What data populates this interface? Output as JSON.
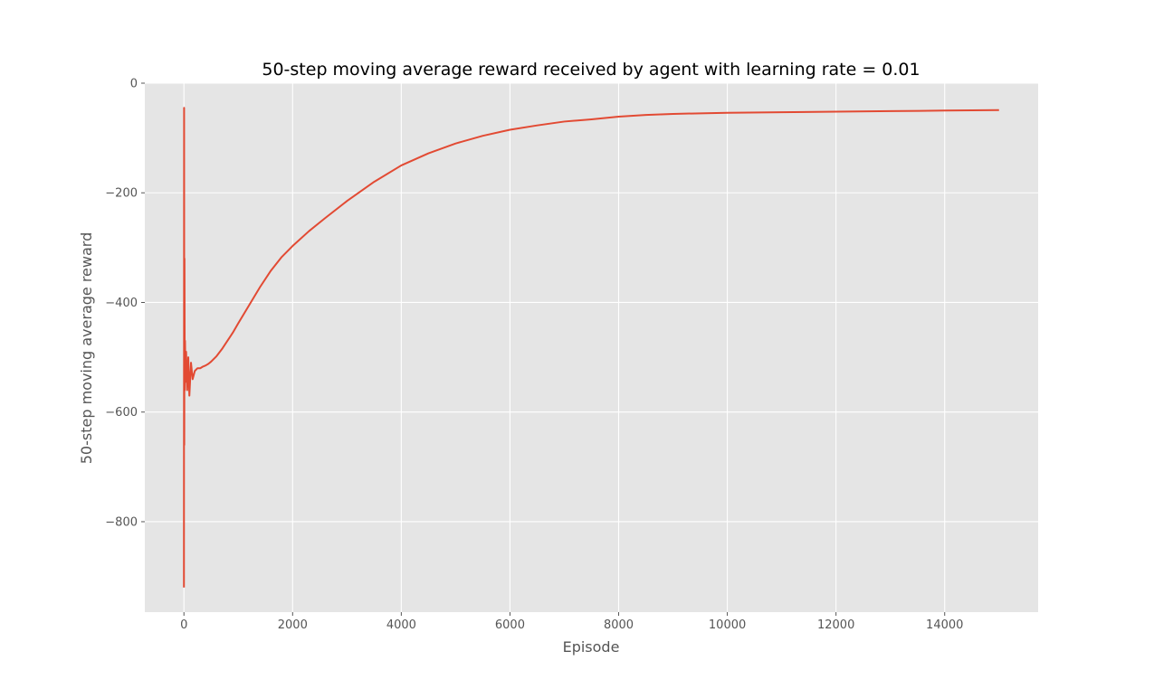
{
  "chart_data": {
    "type": "line",
    "title": "50-step moving average reward received by agent with learning rate = 0.01",
    "xlabel": "Episode",
    "ylabel": "50-step moving average reward",
    "xlim": [
      -720,
      15720
    ],
    "ylim": [
      -965,
      0
    ],
    "grid": true,
    "legend": "none",
    "colors": {
      "background": "#e5e5e5",
      "grid": "#ffffff",
      "line": "#e24a33",
      "text": "#555555"
    },
    "x_ticks": [
      {
        "value": 0,
        "label": "0"
      },
      {
        "value": 2000,
        "label": "2000"
      },
      {
        "value": 4000,
        "label": "4000"
      },
      {
        "value": 6000,
        "label": "6000"
      },
      {
        "value": 8000,
        "label": "8000"
      },
      {
        "value": 10000,
        "label": "10000"
      },
      {
        "value": 12000,
        "label": "12000"
      },
      {
        "value": 14000,
        "label": "14000"
      }
    ],
    "y_ticks": [
      {
        "value": 0,
        "label": "0"
      },
      {
        "value": -200,
        "label": "−200"
      },
      {
        "value": -400,
        "label": "−400"
      },
      {
        "value": -600,
        "label": "−600"
      },
      {
        "value": -800,
        "label": "−800"
      }
    ],
    "series": [
      {
        "x": [
          0,
          3,
          6,
          10,
          15,
          20,
          30,
          40,
          60,
          80,
          100,
          130,
          160,
          200,
          250,
          300,
          350,
          400,
          450,
          500,
          600,
          700,
          800,
          900,
          1000,
          1200,
          1400,
          1600,
          1800,
          2000,
          2300,
          2600,
          3000,
          3500,
          4000,
          4500,
          5000,
          5500,
          6000,
          6500,
          7000,
          7500,
          8000,
          8500,
          9000,
          9500,
          10000,
          11000,
          12000,
          13000,
          14000,
          15000
        ],
        "y": [
          -920,
          -45,
          -660,
          -320,
          -560,
          -470,
          -545,
          -490,
          -560,
          -500,
          -570,
          -510,
          -540,
          -525,
          -520,
          -520,
          -517,
          -515,
          -512,
          -508,
          -498,
          -485,
          -470,
          -455,
          -438,
          -405,
          -372,
          -342,
          -317,
          -297,
          -270,
          -246,
          -215,
          -180,
          -150,
          -128,
          -110,
          -96,
          -85,
          -77,
          -70,
          -66,
          -61,
          -58,
          -56,
          -55,
          -54,
          -53,
          -52,
          -51,
          -50,
          -49
        ]
      }
    ]
  }
}
